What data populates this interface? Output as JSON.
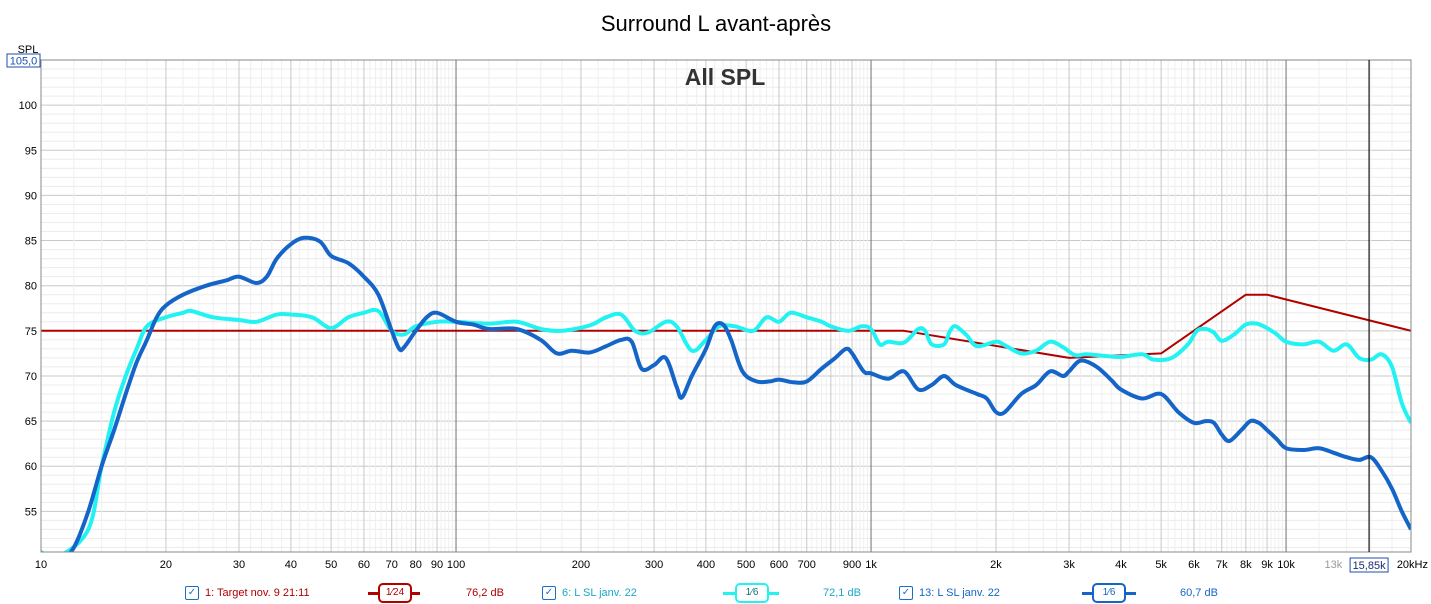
{
  "chart_data": {
    "type": "line",
    "title": "Surround L avant-après",
    "watermark": "All SPL",
    "ylabel": "SPL",
    "xlabel": "",
    "xscale": "log",
    "xlim": [
      10,
      20000
    ],
    "ylim": [
      50.5,
      105
    ],
    "grid": true,
    "y_top_readout": "105,0",
    "cursor_readout": "15,85k",
    "yticks": [
      55,
      60,
      65,
      70,
      75,
      80,
      85,
      90,
      95,
      100
    ],
    "xticks": [
      {
        "v": 10,
        "l": "10"
      },
      {
        "v": 20,
        "l": "20"
      },
      {
        "v": 30,
        "l": "30"
      },
      {
        "v": 40,
        "l": "40"
      },
      {
        "v": 50,
        "l": "50"
      },
      {
        "v": 60,
        "l": "60"
      },
      {
        "v": 70,
        "l": "70"
      },
      {
        "v": 80,
        "l": "80"
      },
      {
        "v": 90,
        "l": "90"
      },
      {
        "v": 100,
        "l": "100"
      },
      {
        "v": 200,
        "l": "200"
      },
      {
        "v": 300,
        "l": "300"
      },
      {
        "v": 400,
        "l": "400"
      },
      {
        "v": 500,
        "l": "500"
      },
      {
        "v": 600,
        "l": "600"
      },
      {
        "v": 700,
        "l": "700"
      },
      {
        "v": 900,
        "l": "900"
      },
      {
        "v": 1000,
        "l": "1k"
      },
      {
        "v": 2000,
        "l": "2k"
      },
      {
        "v": 3000,
        "l": "3k"
      },
      {
        "v": 4000,
        "l": "4k"
      },
      {
        "v": 5000,
        "l": "5k"
      },
      {
        "v": 6000,
        "l": "6k"
      },
      {
        "v": 7000,
        "l": "7k"
      },
      {
        "v": 8000,
        "l": "8k"
      },
      {
        "v": 9000,
        "l": "9k"
      },
      {
        "v": 10000,
        "l": "10k"
      },
      {
        "v": 13000,
        "l": "13k",
        "dim": true
      },
      {
        "v": 20000,
        "l": "20kHz"
      }
    ],
    "series": [
      {
        "name": "1: Target nov. 9 21:11",
        "color": "#b00000",
        "width": 2,
        "points": [
          [
            10,
            75
          ],
          [
            1000,
            75
          ],
          [
            1200,
            75
          ],
          [
            3000,
            72
          ],
          [
            5000,
            72.5
          ],
          [
            8000,
            79
          ],
          [
            9000,
            79
          ],
          [
            20000,
            75
          ]
        ]
      },
      {
        "name": "6: L SL janv. 22",
        "color": "#22f2f2",
        "width": 4,
        "points": [
          [
            10,
            50.5
          ],
          [
            11,
            50
          ],
          [
            13,
            53
          ],
          [
            14,
            60
          ],
          [
            15,
            66
          ],
          [
            16,
            70
          ],
          [
            17,
            73
          ],
          [
            18,
            75.5
          ],
          [
            20,
            76.5
          ],
          [
            22,
            77
          ],
          [
            23,
            77.2
          ],
          [
            26,
            76.5
          ],
          [
            30,
            76.2
          ],
          [
            33,
            76
          ],
          [
            37,
            76.8
          ],
          [
            40,
            76.8
          ],
          [
            45,
            76.5
          ],
          [
            50,
            75.3
          ],
          [
            55,
            76.5
          ],
          [
            60,
            77
          ],
          [
            65,
            77.2
          ],
          [
            70,
            75
          ],
          [
            75,
            74.6
          ],
          [
            80,
            75.5
          ],
          [
            90,
            76
          ],
          [
            100,
            76
          ],
          [
            120,
            75.8
          ],
          [
            140,
            76
          ],
          [
            160,
            75.2
          ],
          [
            180,
            75
          ],
          [
            210,
            75.6
          ],
          [
            230,
            76.5
          ],
          [
            250,
            76.8
          ],
          [
            270,
            75
          ],
          [
            290,
            74.8
          ],
          [
            320,
            76
          ],
          [
            340,
            75.5
          ],
          [
            370,
            72.8
          ],
          [
            400,
            74
          ],
          [
            430,
            75.5
          ],
          [
            470,
            75.5
          ],
          [
            520,
            75
          ],
          [
            560,
            76.5
          ],
          [
            600,
            76
          ],
          [
            640,
            77
          ],
          [
            700,
            76.5
          ],
          [
            760,
            76
          ],
          [
            800,
            75.5
          ],
          [
            880,
            75
          ],
          [
            950,
            75.5
          ],
          [
            1000,
            75.2
          ],
          [
            1050,
            73.5
          ],
          [
            1100,
            73.8
          ],
          [
            1200,
            73.7
          ],
          [
            1300,
            75.2
          ],
          [
            1350,
            75
          ],
          [
            1400,
            73.5
          ],
          [
            1500,
            73.5
          ],
          [
            1550,
            75
          ],
          [
            1600,
            75.5
          ],
          [
            1700,
            74.5
          ],
          [
            1800,
            73.3
          ],
          [
            2000,
            73.8
          ],
          [
            2100,
            73.4
          ],
          [
            2300,
            72.5
          ],
          [
            2500,
            72.8
          ],
          [
            2700,
            73.8
          ],
          [
            2900,
            73.2
          ],
          [
            3100,
            72.3
          ],
          [
            3300,
            72.4
          ],
          [
            3700,
            72.2
          ],
          [
            4000,
            72.1
          ],
          [
            4500,
            72.4
          ],
          [
            4800,
            71.8
          ],
          [
            5300,
            72
          ],
          [
            5800,
            73.5
          ],
          [
            6100,
            75
          ],
          [
            6400,
            75.2
          ],
          [
            6700,
            74.8
          ],
          [
            7000,
            73.9
          ],
          [
            7500,
            74.6
          ],
          [
            8000,
            75.7
          ],
          [
            8500,
            75.8
          ],
          [
            9000,
            75.3
          ],
          [
            9500,
            74.6
          ],
          [
            10000,
            73.8
          ],
          [
            11000,
            73.5
          ],
          [
            12000,
            73.8
          ],
          [
            13000,
            72.8
          ],
          [
            14000,
            73.5
          ],
          [
            15000,
            72
          ],
          [
            16000,
            71.8
          ],
          [
            17000,
            72.4
          ],
          [
            18000,
            71
          ],
          [
            19000,
            67
          ],
          [
            20000,
            64.8
          ]
        ]
      },
      {
        "name": "13: L SL janv. 22",
        "color": "#1565c8",
        "width": 4,
        "points": [
          [
            10,
            47
          ],
          [
            11,
            49
          ],
          [
            12,
            51
          ],
          [
            13,
            55
          ],
          [
            14,
            60
          ],
          [
            15,
            64
          ],
          [
            16,
            68
          ],
          [
            17,
            71.5
          ],
          [
            18,
            74
          ],
          [
            19,
            76.5
          ],
          [
            20,
            77.8
          ],
          [
            22,
            79
          ],
          [
            25,
            80
          ],
          [
            28,
            80.6
          ],
          [
            30,
            81
          ],
          [
            33,
            80.3
          ],
          [
            35,
            81
          ],
          [
            37,
            83
          ],
          [
            40,
            84.6
          ],
          [
            43,
            85.3
          ],
          [
            47,
            84.9
          ],
          [
            50,
            83.3
          ],
          [
            55,
            82.5
          ],
          [
            60,
            81
          ],
          [
            65,
            79
          ],
          [
            70,
            75
          ],
          [
            73,
            73
          ],
          [
            75,
            73.2
          ],
          [
            80,
            75
          ],
          [
            85,
            76.5
          ],
          [
            90,
            77
          ],
          [
            100,
            76
          ],
          [
            110,
            75.7
          ],
          [
            120,
            75.2
          ],
          [
            140,
            75.2
          ],
          [
            160,
            74
          ],
          [
            175,
            72.5
          ],
          [
            190,
            72.8
          ],
          [
            210,
            72.6
          ],
          [
            230,
            73.3
          ],
          [
            250,
            74
          ],
          [
            265,
            73.8
          ],
          [
            280,
            70.8
          ],
          [
            300,
            71.2
          ],
          [
            320,
            72
          ],
          [
            340,
            68.8
          ],
          [
            350,
            67.6
          ],
          [
            370,
            70
          ],
          [
            400,
            73
          ],
          [
            420,
            75.5
          ],
          [
            440,
            75.7
          ],
          [
            460,
            74
          ],
          [
            490,
            70.5
          ],
          [
            530,
            69.4
          ],
          [
            570,
            69.4
          ],
          [
            600,
            69.6
          ],
          [
            650,
            69.3
          ],
          [
            700,
            69.4
          ],
          [
            760,
            70.8
          ],
          [
            820,
            72
          ],
          [
            870,
            73
          ],
          [
            900,
            72.5
          ],
          [
            960,
            70.5
          ],
          [
            1000,
            70.3
          ],
          [
            1100,
            69.7
          ],
          [
            1200,
            70.5
          ],
          [
            1300,
            68.5
          ],
          [
            1400,
            69
          ],
          [
            1500,
            70
          ],
          [
            1600,
            69
          ],
          [
            1800,
            68
          ],
          [
            1900,
            67.5
          ],
          [
            2000,
            66
          ],
          [
            2100,
            66
          ],
          [
            2300,
            68
          ],
          [
            2500,
            69
          ],
          [
            2700,
            70.5
          ],
          [
            2900,
            70
          ],
          [
            3000,
            70.5
          ],
          [
            3200,
            71.7
          ],
          [
            3500,
            71
          ],
          [
            3800,
            69.5
          ],
          [
            4000,
            68.5
          ],
          [
            4500,
            67.5
          ],
          [
            5000,
            68
          ],
          [
            5500,
            66
          ],
          [
            6000,
            64.8
          ],
          [
            6400,
            65
          ],
          [
            6700,
            64.8
          ],
          [
            7000,
            63.5
          ],
          [
            7300,
            62.8
          ],
          [
            7800,
            64
          ],
          [
            8200,
            65
          ],
          [
            8600,
            64.8
          ],
          [
            9000,
            64
          ],
          [
            9500,
            63
          ],
          [
            10000,
            62
          ],
          [
            11000,
            61.8
          ],
          [
            12000,
            62
          ],
          [
            13000,
            61.5
          ],
          [
            14000,
            61
          ],
          [
            15000,
            60.7
          ],
          [
            16000,
            61
          ],
          [
            17000,
            59.5
          ],
          [
            18000,
            57.5
          ],
          [
            19000,
            55
          ],
          [
            20000,
            53
          ]
        ]
      }
    ]
  },
  "legend": [
    {
      "label": "1: Target nov. 9 21:11",
      "smoothing": "1⁄24",
      "value": "76,2 dB",
      "color": "#b00000",
      "checked": "✓"
    },
    {
      "label": "6: L SL janv. 22",
      "smoothing": "1⁄6",
      "value": "72,1 dB",
      "color": "#22d8e0",
      "checked": "✓"
    },
    {
      "label": "13: L SL janv. 22",
      "smoothing": "1⁄6",
      "value": "60,7 dB",
      "color": "#1565c8",
      "checked": "✓"
    }
  ]
}
